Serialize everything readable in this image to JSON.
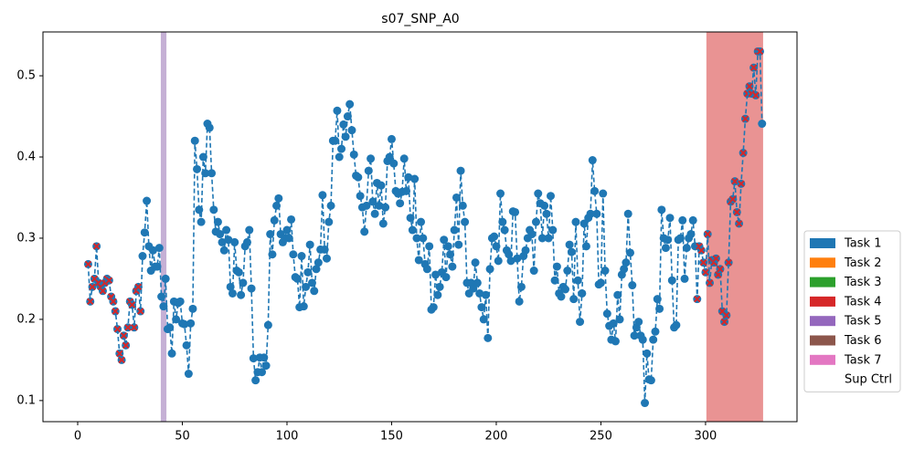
{
  "chart_data": {
    "type": "line",
    "title": "s07_SNP_A0",
    "x": [
      5,
      6,
      7,
      8,
      9,
      10,
      11,
      12,
      13,
      14,
      15,
      16,
      17,
      18,
      19,
      20,
      21,
      22,
      23,
      24,
      25,
      26,
      27,
      28,
      29,
      30,
      31,
      32,
      33,
      34,
      35,
      36,
      37,
      38,
      39,
      40,
      41,
      42,
      43,
      44,
      45,
      46,
      47,
      48,
      49,
      50,
      51,
      52,
      53,
      54,
      55,
      56,
      57,
      58,
      59,
      60,
      61,
      62,
      63,
      64,
      65,
      66,
      67,
      68,
      69,
      70,
      71,
      72,
      73,
      74,
      75,
      76,
      77,
      78,
      79,
      80,
      81,
      82,
      83,
      84,
      85,
      86,
      87,
      88,
      89,
      90,
      91,
      92,
      93,
      94,
      95,
      96,
      97,
      98,
      99,
      100,
      101,
      102,
      103,
      104,
      105,
      106,
      107,
      108,
      109,
      110,
      111,
      112,
      113,
      114,
      115,
      116,
      117,
      118,
      119,
      120,
      121,
      122,
      123,
      124,
      125,
      126,
      127,
      128,
      129,
      130,
      131,
      132,
      133,
      134,
      135,
      136,
      137,
      138,
      139,
      140,
      141,
      142,
      143,
      144,
      145,
      146,
      147,
      148,
      149,
      150,
      151,
      152,
      153,
      154,
      155,
      156,
      157,
      158,
      159,
      160,
      161,
      162,
      163,
      164,
      165,
      166,
      167,
      168,
      169,
      170,
      171,
      172,
      173,
      174,
      175,
      176,
      177,
      178,
      179,
      180,
      181,
      182,
      183,
      184,
      185,
      186,
      187,
      188,
      189,
      190,
      191,
      192,
      193,
      194,
      195,
      196,
      197,
      198,
      199,
      200,
      201,
      202,
      203,
      204,
      205,
      206,
      207,
      208,
      209,
      210,
      211,
      212,
      213,
      214,
      215,
      216,
      217,
      218,
      219,
      220,
      221,
      222,
      223,
      224,
      225,
      226,
      227,
      228,
      229,
      230,
      231,
      232,
      233,
      234,
      235,
      236,
      237,
      238,
      239,
      240,
      241,
      242,
      243,
      244,
      245,
      246,
      247,
      248,
      249,
      250,
      251,
      252,
      253,
      254,
      255,
      256,
      257,
      258,
      259,
      260,
      261,
      262,
      263,
      264,
      265,
      266,
      267,
      268,
      269,
      270,
      271,
      272,
      273,
      274,
      275,
      276,
      277,
      278,
      279,
      280,
      281,
      282,
      283,
      284,
      285,
      286,
      287,
      288,
      289,
      290,
      291,
      292,
      293,
      294,
      295,
      296,
      297,
      298,
      299,
      300,
      301,
      302,
      303,
      304,
      305,
      306,
      307,
      308,
      309,
      310,
      311,
      312,
      313,
      314,
      315,
      316,
      317,
      318,
      319,
      320,
      321,
      322,
      323,
      324,
      325,
      326,
      327
    ],
    "series": [
      {
        "color": "#1f77b4",
        "values": [
          0.268,
          0.222,
          0.24,
          0.25,
          0.29,
          0.245,
          0.24,
          0.235,
          0.245,
          0.25,
          0.248,
          0.228,
          0.222,
          0.21,
          0.188,
          0.158,
          0.15,
          0.18,
          0.168,
          0.19,
          0.222,
          0.218,
          0.19,
          0.235,
          0.24,
          0.21,
          0.278,
          0.307,
          0.346,
          0.29,
          0.26,
          0.285,
          0.265,
          0.265,
          0.288,
          0.228,
          0.216,
          0.25,
          0.188,
          0.19,
          0.158,
          0.222,
          0.2,
          0.22,
          0.222,
          0.195,
          0.194,
          0.168,
          0.133,
          0.195,
          0.213,
          0.42,
          0.385,
          0.335,
          0.32,
          0.4,
          0.38,
          0.441,
          0.436,
          0.38,
          0.335,
          0.308,
          0.32,
          0.305,
          0.295,
          0.285,
          0.31,
          0.298,
          0.24,
          0.232,
          0.295,
          0.26,
          0.258,
          0.23,
          0.245,
          0.29,
          0.295,
          0.31,
          0.238,
          0.152,
          0.125,
          0.135,
          0.153,
          0.135,
          0.153,
          0.143,
          0.193,
          0.305,
          0.28,
          0.322,
          0.34,
          0.349,
          0.305,
          0.295,
          0.3,
          0.31,
          0.3,
          0.323,
          0.28,
          0.252,
          0.25,
          0.215,
          0.278,
          0.216,
          0.24,
          0.258,
          0.292,
          0.245,
          0.235,
          0.262,
          0.27,
          0.286,
          0.353,
          0.286,
          0.275,
          0.32,
          0.34,
          0.42,
          0.42,
          0.457,
          0.4,
          0.41,
          0.44,
          0.425,
          0.45,
          0.465,
          0.433,
          0.403,
          0.377,
          0.375,
          0.352,
          0.338,
          0.308,
          0.34,
          0.383,
          0.398,
          0.345,
          0.33,
          0.368,
          0.34,
          0.365,
          0.318,
          0.338,
          0.395,
          0.4,
          0.422,
          0.392,
          0.358,
          0.355,
          0.343,
          0.357,
          0.398,
          0.358,
          0.375,
          0.325,
          0.31,
          0.373,
          0.3,
          0.273,
          0.32,
          0.3,
          0.268,
          0.262,
          0.29,
          0.212,
          0.215,
          0.255,
          0.23,
          0.24,
          0.258,
          0.298,
          0.252,
          0.29,
          0.28,
          0.265,
          0.31,
          0.35,
          0.292,
          0.383,
          0.34,
          0.32,
          0.245,
          0.232,
          0.245,
          0.238,
          0.27,
          0.245,
          0.232,
          0.215,
          0.2,
          0.23,
          0.177,
          0.262,
          0.3,
          0.302,
          0.29,
          0.272,
          0.355,
          0.32,
          0.31,
          0.285,
          0.28,
          0.272,
          0.333,
          0.332,
          0.275,
          0.222,
          0.24,
          0.278,
          0.285,
          0.3,
          0.31,
          0.305,
          0.26,
          0.32,
          0.355,
          0.343,
          0.3,
          0.34,
          0.33,
          0.3,
          0.352,
          0.31,
          0.248,
          0.265,
          0.232,
          0.228,
          0.24,
          0.237,
          0.26,
          0.292,
          0.283,
          0.225,
          0.32,
          0.248,
          0.197,
          0.232,
          0.318,
          0.29,
          0.325,
          0.33,
          0.396,
          0.358,
          0.33,
          0.243,
          0.245,
          0.355,
          0.26,
          0.207,
          0.192,
          0.175,
          0.195,
          0.173,
          0.23,
          0.2,
          0.255,
          0.262,
          0.27,
          0.33,
          0.282,
          0.242,
          0.18,
          0.19,
          0.197,
          0.18,
          0.175,
          0.097,
          0.158,
          0.126,
          0.125,
          0.175,
          0.185,
          0.225,
          0.213,
          0.335,
          0.3,
          0.288,
          0.298,
          0.325,
          0.248,
          0.19,
          0.193,
          0.298,
          0.3,
          0.322,
          0.25,
          0.288,
          0.3,
          0.305,
          0.322,
          0.29,
          0.225,
          0.29,
          0.285,
          0.27,
          0.258,
          0.305,
          0.245,
          0.273,
          0.27,
          0.275,
          0.255,
          0.262,
          0.21,
          0.197,
          0.205,
          0.27,
          0.345,
          0.348,
          0.37,
          0.332,
          0.318,
          0.367,
          0.405,
          0.447,
          0.478,
          0.487,
          0.478,
          0.51,
          0.476,
          0.53,
          0.53,
          0.441
        ]
      }
    ],
    "marked_ranges": [
      [
        5,
        30
      ],
      [
        296,
        326
      ]
    ],
    "marker_color": "#d62728",
    "spans": [
      {
        "xlim": [
          39.7,
          42.4
        ],
        "color": "#c5b0d5"
      },
      {
        "xlim": [
          300.4,
          327.5
        ],
        "color": "#e99393"
      }
    ],
    "xlim": [
      -16.6,
      343.7
    ],
    "ylim": [
      0.074,
      0.554
    ],
    "xticks": [
      0,
      50,
      100,
      150,
      200,
      250,
      300
    ],
    "yticks": [
      0.1,
      0.2,
      0.3,
      0.4,
      0.5
    ],
    "legend": [
      {
        "name": "Task 1",
        "color": "#1f77b4"
      },
      {
        "name": "Task 2",
        "color": "#ff7f0e"
      },
      {
        "name": "Task 3",
        "color": "#2ca02c"
      },
      {
        "name": "Task 4",
        "color": "#d62728"
      },
      {
        "name": "Task 5",
        "color": "#9467bd"
      },
      {
        "name": "Task 6",
        "color": "#8c564b"
      },
      {
        "name": "Task 7",
        "color": "#e377c2"
      },
      {
        "name": "Sup Ctrl",
        "color": "#ffffff"
      }
    ]
  }
}
